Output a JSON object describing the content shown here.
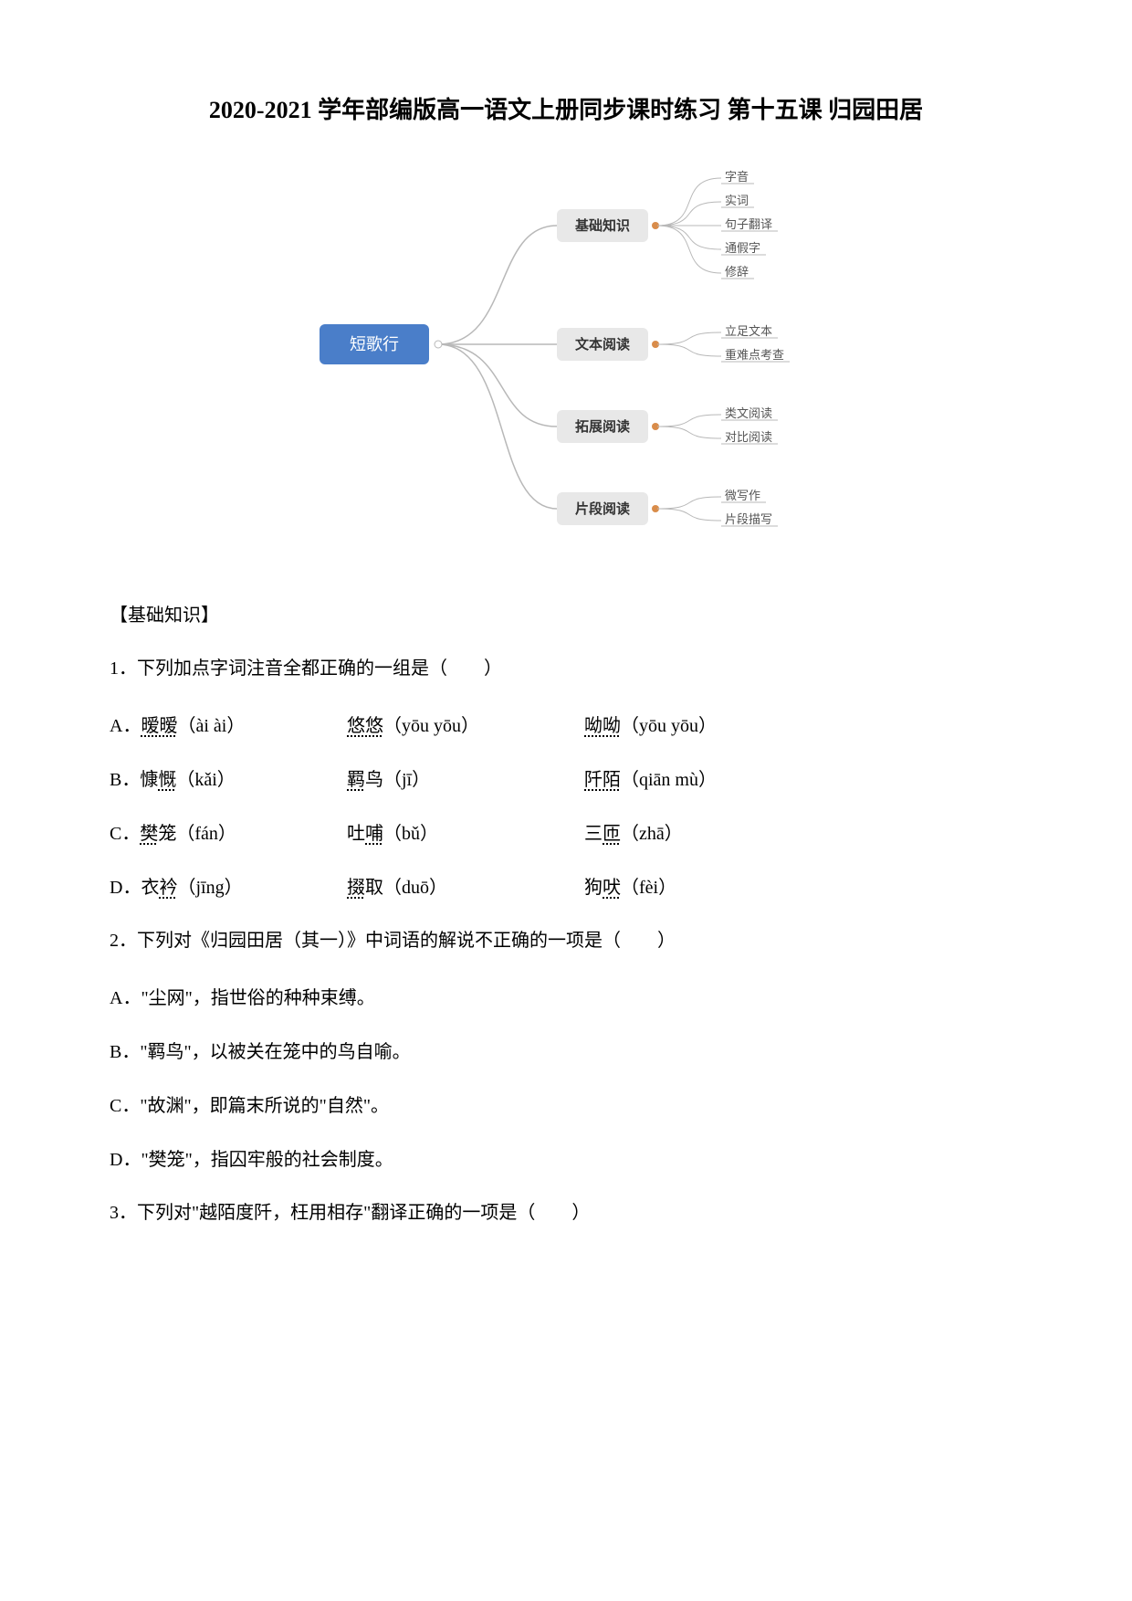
{
  "title": "2020-2021 学年部编版高一语文上册同步课时练习 第十五课 归园田居",
  "mindmap": {
    "root": {
      "label": "短歌行",
      "bg": "#4a7ec9",
      "fg": "#ffffff"
    },
    "level2_bg": "#e8e8e8",
    "level2_fg": "#333333",
    "dot_color": "#d98c4a",
    "line_color": "#b8b8b8",
    "node_border_radius": 6,
    "font_size_root": 18,
    "font_size_l2": 15,
    "font_size_l3": 13,
    "branches": [
      {
        "label": "基础知识",
        "children": [
          "字音",
          "实词",
          "句子翻译",
          "通假字",
          "修辞"
        ]
      },
      {
        "label": "文本阅读",
        "children": [
          "立足文本",
          "重难点考查"
        ]
      },
      {
        "label": "拓展阅读",
        "children": [
          "类文阅读",
          "对比阅读"
        ]
      },
      {
        "label": "片段阅读",
        "children": [
          "微写作",
          "片段描写"
        ]
      }
    ]
  },
  "section1": "【基础知识】",
  "q1": {
    "stem": "1．下列加点字词注音全都正确的一组是（　　）",
    "rows": [
      {
        "a1": "A．",
        "a2": "暧暧",
        "a3": "（ài ài）",
        "b1": "悠悠",
        "b2": "（yōu yōu）",
        "c1": "呦呦",
        "c2": "（yōu yōu）"
      },
      {
        "a1": "B．慷",
        "a2": "慨",
        "a3": "（kǎi）",
        "b1": "羁",
        "b2": "鸟（jī）",
        "c1": "阡陌",
        "c2": "（qiān mù）"
      },
      {
        "a1": "C．",
        "a2": "樊",
        "a3": "笼（fán）",
        "b1": "吐",
        "b2": "哺",
        "b3": "（bǔ）",
        "c1": "三",
        "c2": "匝",
        "c3": "（zhā）"
      },
      {
        "a1": "D．衣",
        "a2": "衿",
        "a3": "（jīng）",
        "b1": "掇",
        "b2": "取（duō）",
        "c1": "狗",
        "c2": "吠",
        "c3": "（fèi）"
      }
    ]
  },
  "q2": {
    "stem": "2．下列对《归园田居（其一）》中词语的解说不正确的一项是（　　）",
    "options": [
      "A．\"尘网\"，指世俗的种种束缚。",
      "B．\"羁鸟\"，以被关在笼中的鸟自喻。",
      "C．\"故渊\"，即篇末所说的\"自然\"。",
      "D．\"樊笼\"，指囚牢般的社会制度。"
    ]
  },
  "q3": {
    "stem": "3．下列对\"越陌度阡，枉用相存\"翻译正确的一项是（　　）"
  }
}
